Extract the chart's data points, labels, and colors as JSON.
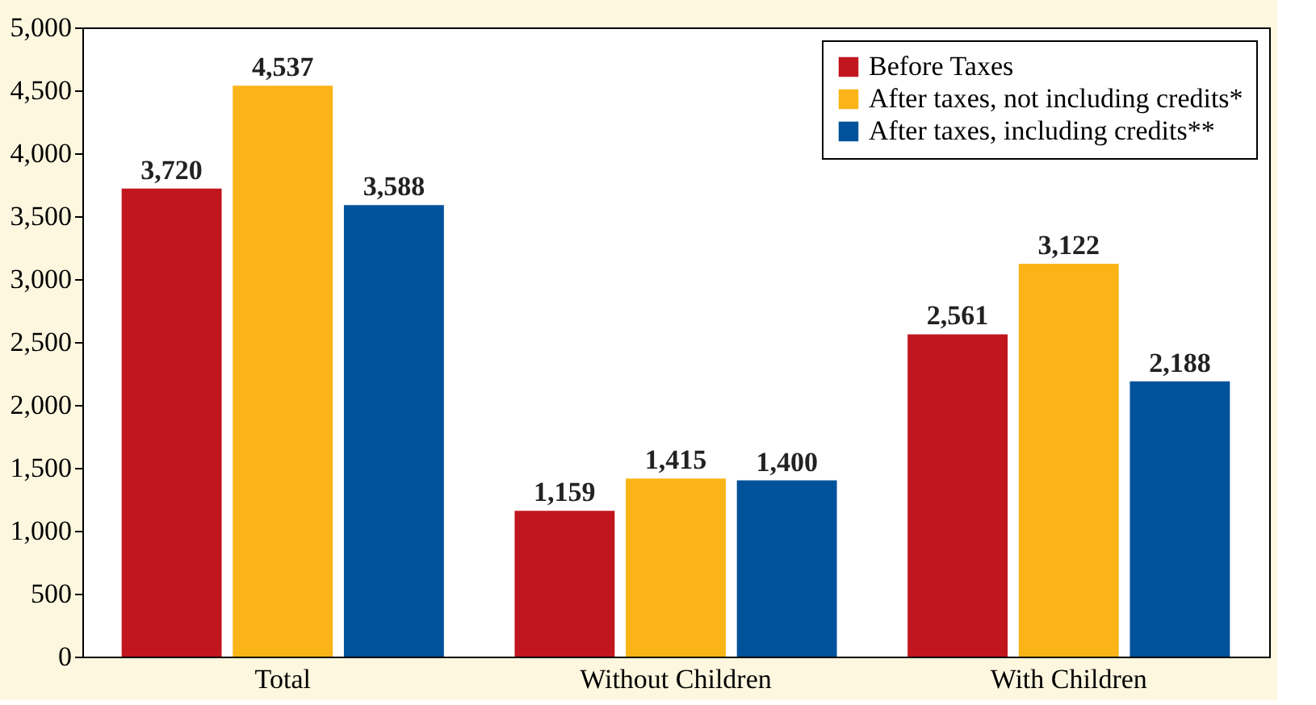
{
  "chart_data": {
    "type": "bar",
    "categories": [
      "Total",
      "Without Children",
      "With Children"
    ],
    "series": [
      {
        "name": "Before Taxes",
        "color": "#c1161e",
        "values": [
          3720,
          1159,
          2561
        ],
        "value_labels": [
          "3,720",
          "1,159",
          "2,561"
        ]
      },
      {
        "name": "After taxes, not including credits*",
        "color": "#fbb417",
        "values": [
          4537,
          1415,
          3122
        ],
        "value_labels": [
          "4,537",
          "1,415",
          "3,122"
        ]
      },
      {
        "name": "After taxes, including credits**",
        "color": "#00529b",
        "values": [
          3588,
          1400,
          2188
        ],
        "value_labels": [
          "3,588",
          "1,400",
          "2,188"
        ]
      }
    ],
    "ylim": [
      0,
      5000
    ],
    "yticks": [
      0,
      500,
      {
        "value": 1000,
        "label": "1,000"
      },
      {
        "value": 1500,
        "label": "1,500"
      },
      {
        "value": 2000,
        "label": "2,000"
      },
      {
        "value": 2500,
        "label": "2,500"
      },
      {
        "value": 3000,
        "label": "3,000"
      },
      {
        "value": 3500,
        "label": "3,500"
      },
      {
        "value": 4000,
        "label": "4,000"
      },
      {
        "value": 4500,
        "label": "4,500"
      },
      {
        "value": 5000,
        "label": "5,000"
      }
    ],
    "grid": false,
    "legend": "top right"
  }
}
